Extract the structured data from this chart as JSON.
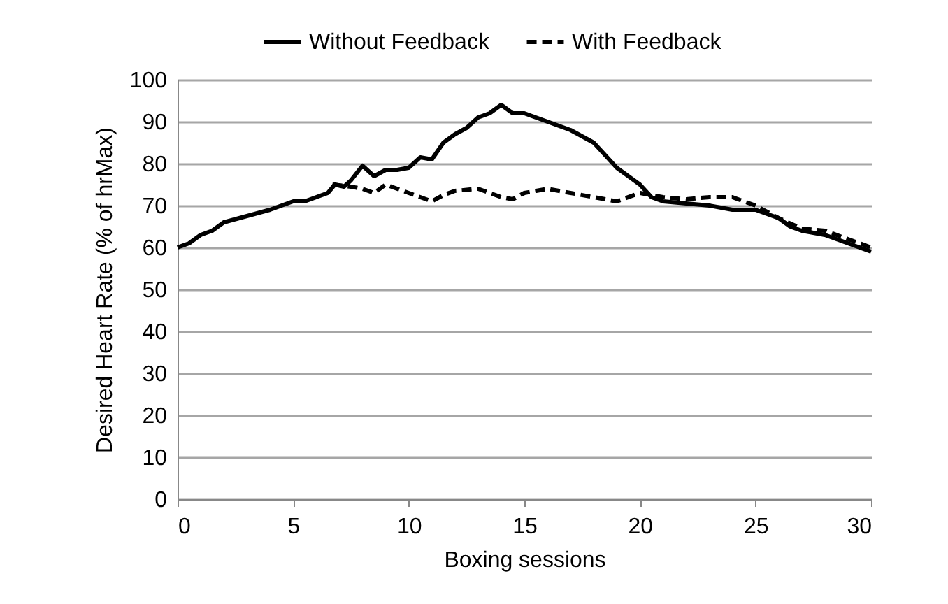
{
  "chart_data": {
    "type": "line",
    "xlabel": "Boxing sessions",
    "ylabel": "Desired Heart Rate (% of hrMax)",
    "xlim": [
      0,
      30
    ],
    "xticks": [
      0,
      5,
      10,
      15,
      20,
      25,
      30
    ],
    "ylim": [
      0,
      100
    ],
    "yticks": [
      0,
      10,
      20,
      30,
      40,
      50,
      60,
      70,
      80,
      90,
      100
    ],
    "grid": "y",
    "legend": "top",
    "marker": "none",
    "series": [
      {
        "name": "Without Feedback",
        "color": "#000000",
        "line_style": "solid",
        "x": [
          0,
          0.5,
          1,
          1.5,
          2,
          3,
          4,
          5,
          5.5,
          6,
          6.5,
          6.8,
          7.2,
          7.5,
          8,
          8.5,
          9,
          9.5,
          10,
          10.5,
          11,
          11.5,
          12,
          12.5,
          13,
          13.5,
          14,
          14.5,
          15,
          16,
          17,
          18,
          19,
          20,
          20.5,
          21,
          22,
          23,
          24,
          25,
          26,
          26.5,
          27,
          28,
          29,
          30
        ],
        "values": [
          60,
          61,
          63,
          64,
          66,
          67.5,
          69,
          71,
          71,
          72,
          73,
          75,
          74.5,
          76,
          79.5,
          77,
          78.5,
          78.5,
          79,
          81.5,
          81,
          85,
          87,
          88.5,
          91,
          92,
          94,
          92,
          92,
          90,
          88,
          85,
          79,
          75,
          72,
          71,
          70.5,
          70,
          69,
          69,
          67,
          65,
          64,
          63,
          61,
          59
        ]
      },
      {
        "name": "With Feedback",
        "color": "#000000",
        "line_style": "dashed",
        "x": [
          6.7,
          7.5,
          8,
          8.5,
          9,
          10,
          11,
          11.5,
          12,
          13,
          14,
          14.5,
          15,
          16,
          17,
          18,
          19,
          20,
          21,
          22,
          23,
          24,
          25,
          26,
          27,
          28,
          29,
          30
        ],
        "values": [
          75,
          74.5,
          74,
          73,
          75,
          73,
          71,
          72.5,
          73.5,
          74,
          72,
          71.5,
          73,
          74,
          73,
          72,
          71,
          73,
          72,
          71.5,
          72,
          72,
          70,
          67,
          64.5,
          64,
          62,
          60
        ]
      }
    ]
  }
}
